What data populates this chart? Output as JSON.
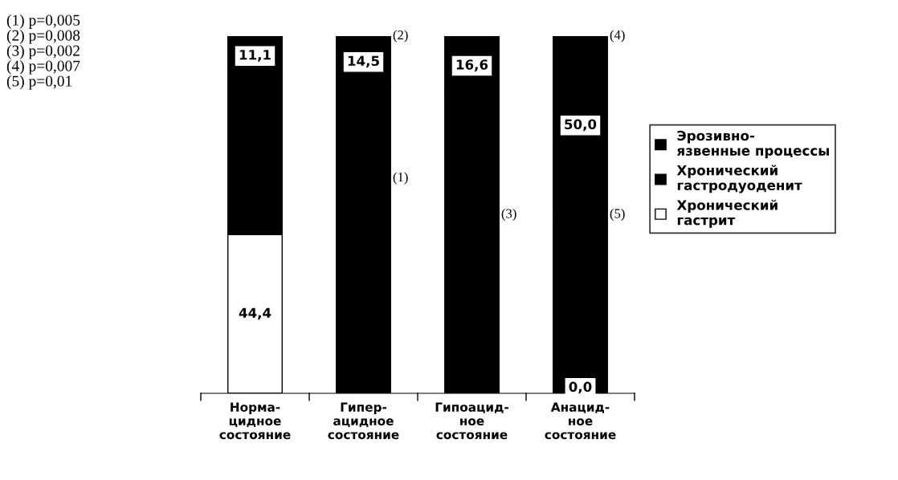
{
  "chart_data": {
    "type": "bar",
    "stacked": true,
    "categories": [
      "Норма-\nцидное\nсостояние",
      "Гипер-\nацидное\nсостояние",
      "Гипоацид-\nное\nсостояние",
      "Анацид-\nное\nсостояние"
    ],
    "series": [
      {
        "name": "Хронический\nгастрит",
        "colors": [
          "#ffffff",
          "#000000",
          "#000000",
          "#000000"
        ],
        "values": [
          44.4,
          60.2,
          50.0,
          0.0
        ],
        "value_labels": [
          "44,4",
          null,
          null,
          "0,0"
        ]
      },
      {
        "name": "Хронический\nгастродуоденит",
        "color": "#000000",
        "values": [
          44.5,
          25.3,
          33.4,
          50.0
        ]
      },
      {
        "name": "Эрозивно-\nязвенные процессы",
        "color": "#000000",
        "values": [
          11.1,
          14.5,
          16.6,
          50.0
        ],
        "value_labels": [
          "11,1",
          "14,5",
          "16,6",
          "50,0"
        ]
      }
    ],
    "legend": "right",
    "annotations": [
      "(1) p=0,005\n(2) p=0,008\n(3) p=0,002\n(4) p=0,007\n(5) p=0,01",
      {
        "text": "(2)",
        "x": "Гипер-\nацидное\nсостояние",
        "y": 100.0
      },
      {
        "text": "(1)",
        "x": "Гипер-\nацидное\nсостояние",
        "y": 60.2
      },
      {
        "text": "(3)",
        "x": "Гипоацид-\nное\nсостояние",
        "y": 50.0
      },
      {
        "text": "(4)",
        "x": "Анацид-\nное\nсостояние",
        "y": 100.0
      },
      {
        "text": "(5)",
        "x": "Анацид-\nное\nсостояние",
        "y": 50.0
      }
    ]
  }
}
